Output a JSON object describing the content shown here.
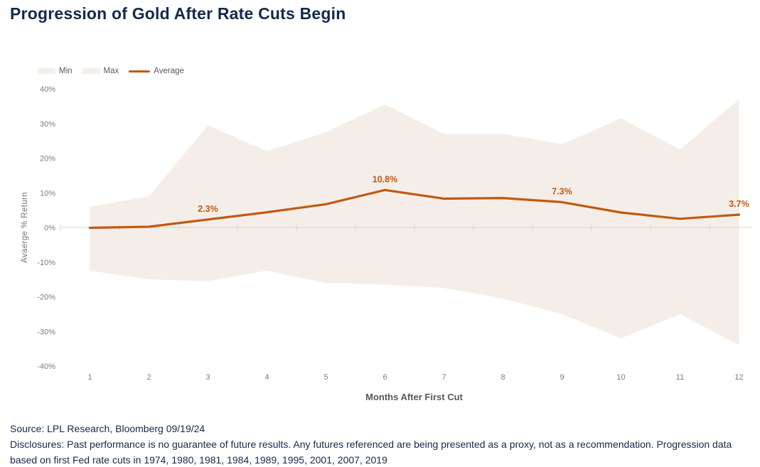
{
  "title": "Progression of Gold After Rate Cuts Begin",
  "chart_data": {
    "type": "line",
    "title": "Progression of Gold After Rate Cuts Begin",
    "categories": [
      1,
      2,
      3,
      4,
      5,
      6,
      7,
      8,
      9,
      10,
      11,
      12
    ],
    "xlabel": "Months After First Cut",
    "ylabel": "Avaerge % Return",
    "ylim": [
      -40,
      40
    ],
    "ytick_step": 10,
    "ytick_suffix": "%",
    "grid": "off",
    "legend_position": "top-left",
    "legend": [
      {
        "label": "Min",
        "swatch": "area",
        "color": "#F5EEE8"
      },
      {
        "label": "Max",
        "swatch": "area",
        "color": "#F5EEE8"
      },
      {
        "label": "Average",
        "swatch": "line",
        "color": "#C05A11"
      }
    ],
    "series": [
      {
        "name": "Min",
        "role": "band-lower",
        "color": "#F5EEE8",
        "values": [
          -12.5,
          -15.0,
          -15.5,
          -12.5,
          -16.0,
          -16.5,
          -17.5,
          -20.5,
          -25.0,
          -32.0,
          -25.0,
          -34.0
        ]
      },
      {
        "name": "Max",
        "role": "band-upper",
        "color": "#F5EEE8",
        "values": [
          6.0,
          9.0,
          29.5,
          22.0,
          27.5,
          35.5,
          27.0,
          27.0,
          24.0,
          31.5,
          22.5,
          37.0
        ]
      },
      {
        "name": "Average",
        "role": "line",
        "color": "#C05A11",
        "values": [
          -0.1,
          0.2,
          2.3,
          4.4,
          6.7,
          10.8,
          8.3,
          8.5,
          7.3,
          4.3,
          2.5,
          3.7
        ]
      }
    ],
    "point_labels": [
      {
        "month": 3,
        "text": "2.3%"
      },
      {
        "month": 6,
        "text": "10.8%"
      },
      {
        "month": 9,
        "text": "7.3%"
      },
      {
        "month": 12,
        "text": "3.7%"
      }
    ],
    "axis_color": "#D8D4D0",
    "tick_label_color": "#7C7C7C"
  },
  "footer": {
    "source": "Source: LPL Research, Bloomberg 09/19/24",
    "disclosures": "Disclosures: Past performance is no guarantee of future results. Any futures referenced are being presented as a proxy, not as a recommendation. Progression data based on first Fed rate cuts in 1974, 1980, 1981, 1984, 1989, 1995, 2001, 2007, 2019"
  }
}
